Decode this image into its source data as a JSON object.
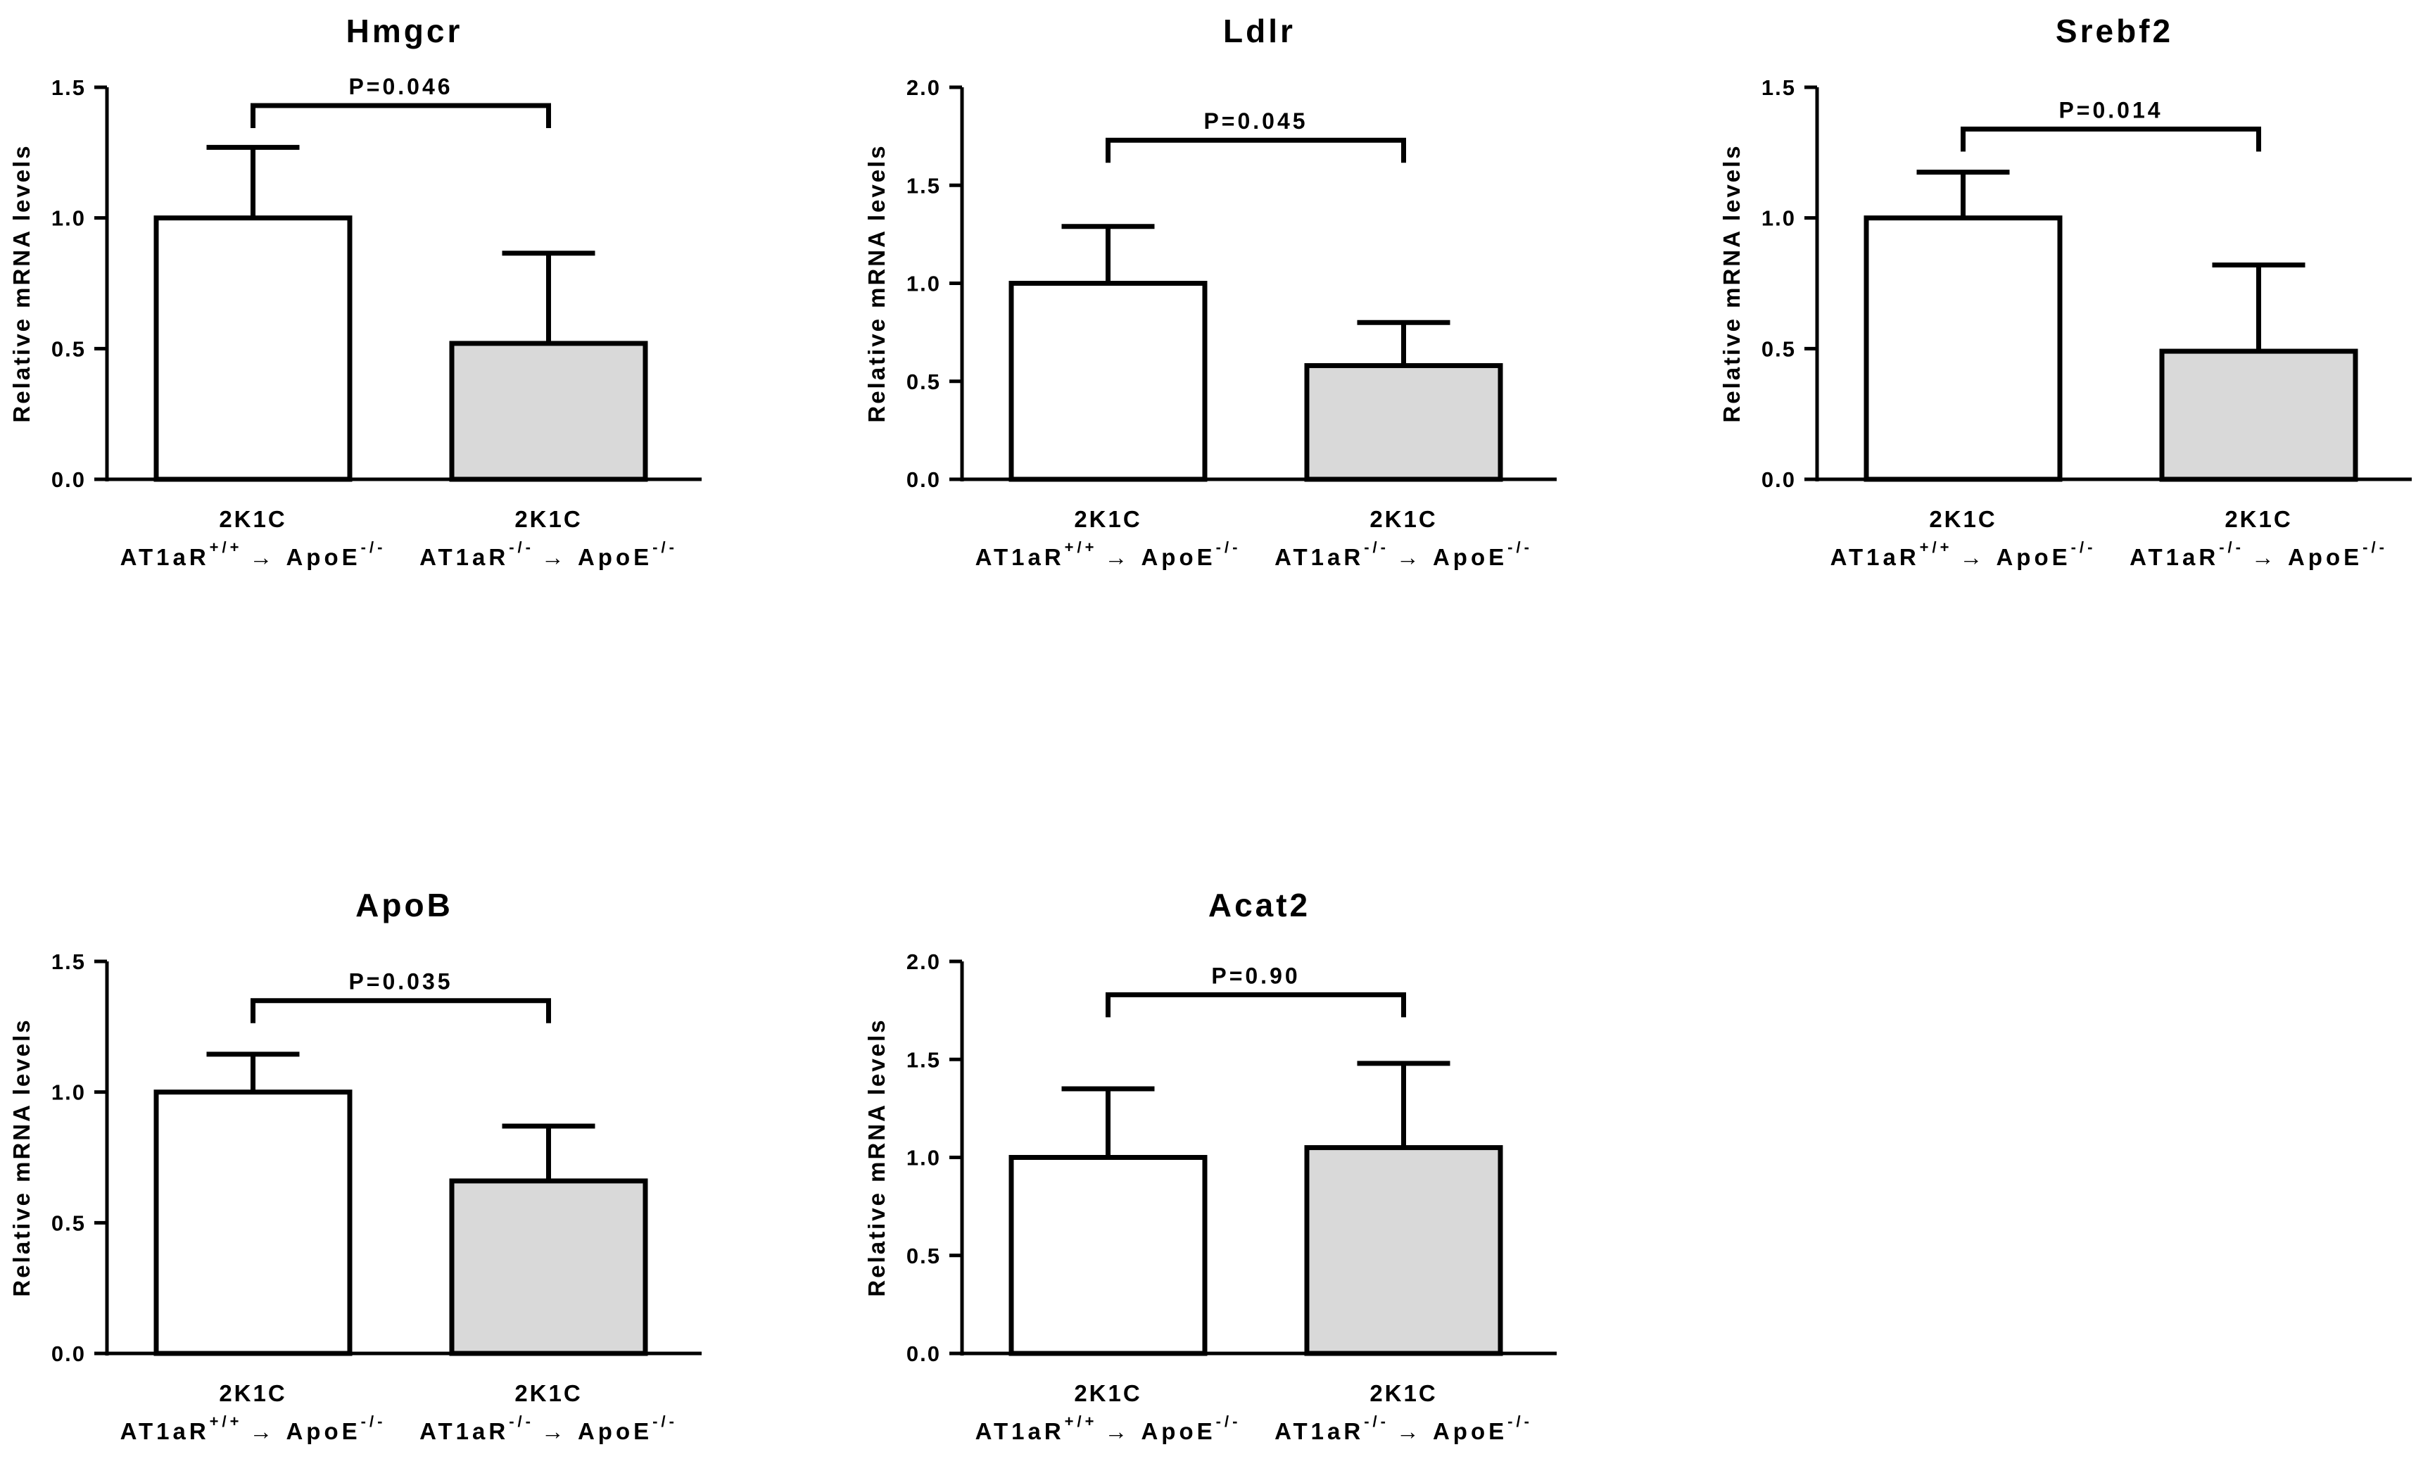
{
  "chart_data": [
    {
      "type": "bar",
      "title": "Hmgcr",
      "ylabel": "Relative mRNA levels",
      "ylim": [
        0,
        1.5
      ],
      "yticks": [
        "0.0",
        "0.5",
        "1.0",
        "1.5"
      ],
      "categories": [
        {
          "line1": "2K1C",
          "prefix": "AT1aR",
          "sup1": "+/+",
          "arrow": "→",
          "target": "ApoE",
          "sup2": "-/-"
        },
        {
          "line1": "2K1C",
          "prefix": "AT1aR",
          "sup1": "-/-",
          "arrow": "→",
          "target": "ApoE",
          "sup2": "-/-"
        }
      ],
      "values": [
        1.0,
        0.52
      ],
      "errors": [
        0.27,
        0.345
      ],
      "colors": [
        "#ffffff",
        "#d9d9d9"
      ],
      "significance": {
        "label": "P=0.046",
        "level": 1.43
      }
    },
    {
      "type": "bar",
      "title": "Ldlr",
      "ylabel": "Relative mRNA levels",
      "ylim": [
        0,
        2.0
      ],
      "yticks": [
        "0.0",
        "0.5",
        "1.0",
        "1.5",
        "2.0"
      ],
      "categories": [
        {
          "line1": "2K1C",
          "prefix": "AT1aR",
          "sup1": "+/+",
          "arrow": "→",
          "target": "ApoE",
          "sup2": "-/-"
        },
        {
          "line1": "2K1C",
          "prefix": "AT1aR",
          "sup1": "-/-",
          "arrow": "→",
          "target": "ApoE",
          "sup2": "-/-"
        }
      ],
      "values": [
        1.0,
        0.58
      ],
      "errors": [
        0.29,
        0.22
      ],
      "colors": [
        "#ffffff",
        "#d9d9d9"
      ],
      "significance": {
        "label": "P=0.045",
        "level": 1.73
      }
    },
    {
      "type": "bar",
      "title": "Srebf2",
      "ylabel": "Relative mRNA levels",
      "ylim": [
        0,
        1.5
      ],
      "yticks": [
        "0.0",
        "0.5",
        "1.0",
        "1.5"
      ],
      "categories": [
        {
          "line1": "2K1C",
          "prefix": "AT1aR",
          "sup1": "+/+",
          "arrow": "→",
          "target": "ApoE",
          "sup2": "-/-"
        },
        {
          "line1": "2K1C",
          "prefix": "AT1aR",
          "sup1": "-/-",
          "arrow": "→",
          "target": "ApoE",
          "sup2": "-/-"
        }
      ],
      "values": [
        1.0,
        0.49
      ],
      "errors": [
        0.175,
        0.33
      ],
      "colors": [
        "#ffffff",
        "#d9d9d9"
      ],
      "significance": {
        "label": "P=0.014",
        "level": 1.34
      }
    },
    {
      "type": "bar",
      "title": "ApoB",
      "ylabel": "Relative mRNA levels",
      "ylim": [
        0,
        1.5
      ],
      "yticks": [
        "0.0",
        "0.5",
        "1.0",
        "1.5"
      ],
      "categories": [
        {
          "line1": "2K1C",
          "prefix": "AT1aR",
          "sup1": "+/+",
          "arrow": "→",
          "target": "ApoE",
          "sup2": "-/-"
        },
        {
          "line1": "2K1C",
          "prefix": "AT1aR",
          "sup1": "-/-",
          "arrow": "→",
          "target": "ApoE",
          "sup2": "-/-"
        }
      ],
      "values": [
        1.0,
        0.66
      ],
      "errors": [
        0.145,
        0.21
      ],
      "colors": [
        "#ffffff",
        "#d9d9d9"
      ],
      "significance": {
        "label": "P=0.035",
        "level": 1.35
      }
    },
    {
      "type": "bar",
      "title": "Acat2",
      "ylabel": "Relative mRNA levels",
      "ylim": [
        0,
        2.0
      ],
      "yticks": [
        "0.0",
        "0.5",
        "1.0",
        "1.5",
        "2.0"
      ],
      "categories": [
        {
          "line1": "2K1C",
          "prefix": "AT1aR",
          "sup1": "+/+",
          "arrow": "→",
          "target": "ApoE",
          "sup2": "-/-"
        },
        {
          "line1": "2K1C",
          "prefix": "AT1aR",
          "sup1": "-/-",
          "arrow": "→",
          "target": "ApoE",
          "sup2": "-/-"
        }
      ],
      "values": [
        1.0,
        1.05
      ],
      "errors": [
        0.35,
        0.43
      ],
      "colors": [
        "#ffffff",
        "#d9d9d9"
      ],
      "significance": {
        "label": "P=0.90",
        "level": 1.83
      }
    }
  ]
}
